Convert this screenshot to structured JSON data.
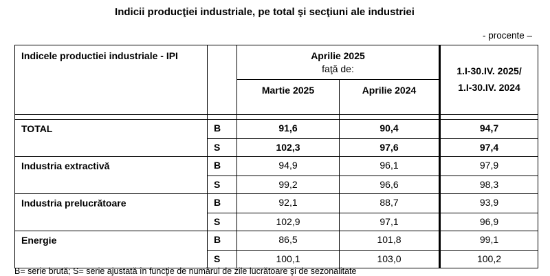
{
  "title": "Indicii producţiei industriale, pe total şi secţiuni ale industriei",
  "unit_note": "- procente –",
  "header": {
    "indicator": "Indicele productiei industriale - IPI",
    "month": "Aprilie 2025",
    "relative_to": "faţă de:",
    "col_prev_month": "Martie 2025",
    "col_prev_year": "Aprilie 2024",
    "cumulative_line1": "1.I-30.IV. 2025/",
    "cumulative_line2": "1.I-30.IV. 2024"
  },
  "rows": [
    {
      "category": "TOTAL",
      "B": {
        "label": "B",
        "v1": "91,6",
        "v2": "90,4",
        "v3": "94,7"
      },
      "S": {
        "label": "S",
        "v1": "102,3",
        "v2": "97,6",
        "v3": "97,4"
      }
    },
    {
      "category": "Industria extractivă",
      "B": {
        "label": "B",
        "v1": "94,9",
        "v2": "96,1",
        "v3": "97,9"
      },
      "S": {
        "label": "S",
        "v1": "99,2",
        "v2": "96,6",
        "v3": "98,3"
      }
    },
    {
      "category": "Industria prelucrătoare",
      "B": {
        "label": "B",
        "v1": "92,1",
        "v2": "88,7",
        "v3": "93,9"
      },
      "S": {
        "label": "S",
        "v1": "102,9",
        "v2": "97,1",
        "v3": "96,9"
      }
    },
    {
      "category": "Energie",
      "B": {
        "label": "B",
        "v1": "86,5",
        "v2": "101,8",
        "v3": "99,1"
      },
      "S": {
        "label": "S",
        "v1": "100,1",
        "v2": "103,0",
        "v3": "100,2"
      }
    }
  ],
  "footnote": "B= serie brută; S= serie ajustată în funcţie de numărul de zile lucrătoare şi de sezonalitate"
}
